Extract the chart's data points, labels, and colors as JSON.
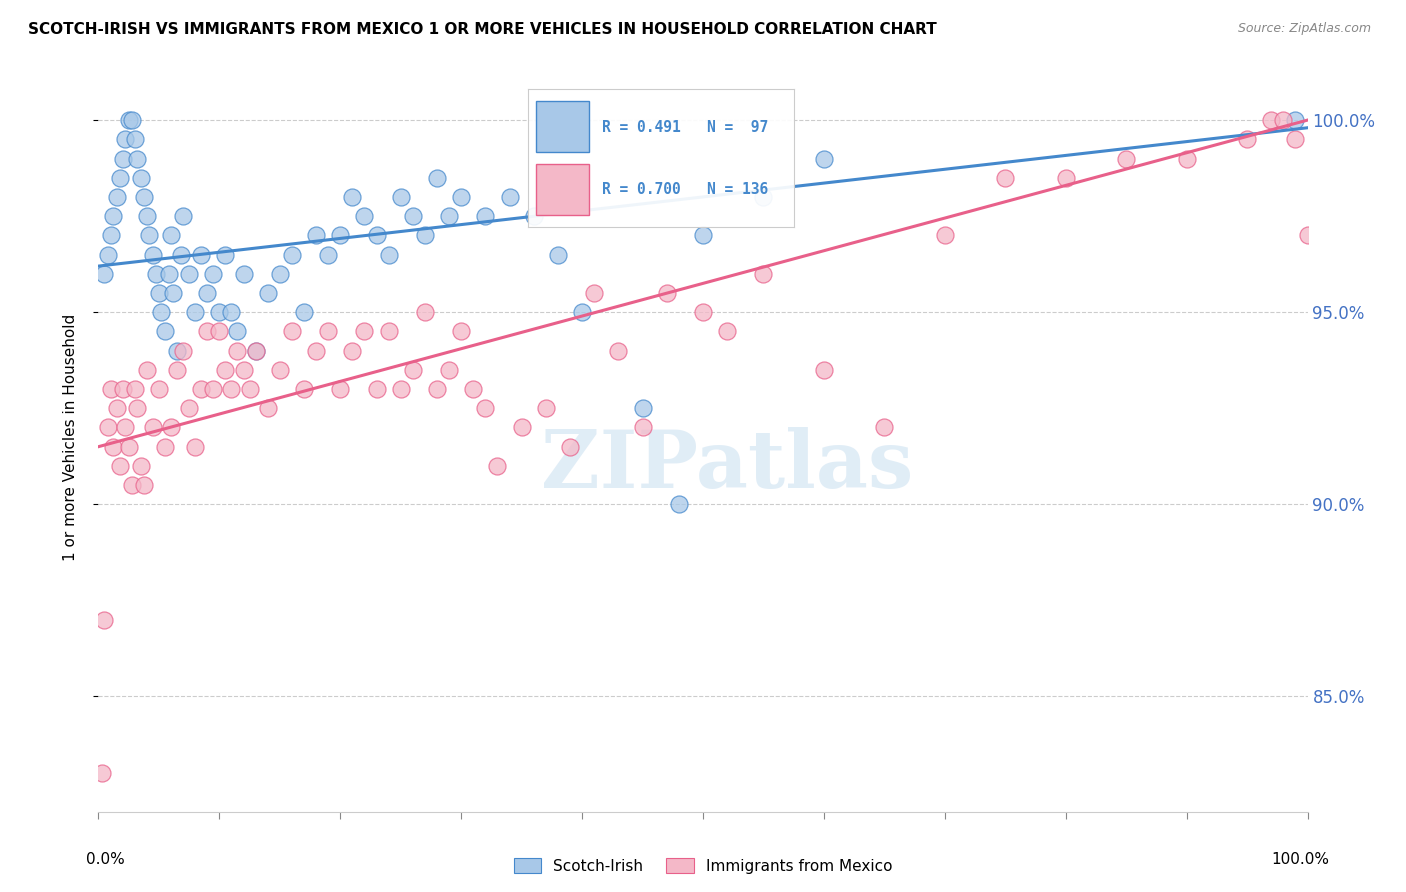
{
  "title": "SCOTCH-IRISH VS IMMIGRANTS FROM MEXICO 1 OR MORE VEHICLES IN HOUSEHOLD CORRELATION CHART",
  "source": "Source: ZipAtlas.com",
  "ylabel": "1 or more Vehicles in Household",
  "watermark": "ZIPatlas",
  "legend_blue_label": "Scotch-Irish",
  "legend_pink_label": "Immigrants from Mexico",
  "R_blue": 0.491,
  "N_blue": 97,
  "R_pink": 0.7,
  "N_pink": 136,
  "blue_color": "#a8c8e8",
  "pink_color": "#f4b8c8",
  "blue_line_color": "#4488cc",
  "pink_line_color": "#e8608a",
  "background_color": "#ffffff",
  "blue_scatter_x": [
    0.5,
    0.8,
    1.0,
    1.2,
    1.5,
    1.8,
    2.0,
    2.2,
    2.5,
    2.8,
    3.0,
    3.2,
    3.5,
    3.8,
    4.0,
    4.2,
    4.5,
    4.8,
    5.0,
    5.2,
    5.5,
    5.8,
    6.0,
    6.2,
    6.5,
    6.8,
    7.0,
    7.5,
    8.0,
    8.5,
    9.0,
    9.5,
    10.0,
    10.5,
    11.0,
    11.5,
    12.0,
    13.0,
    14.0,
    15.0,
    16.0,
    17.0,
    18.0,
    19.0,
    20.0,
    21.0,
    22.0,
    23.0,
    24.0,
    25.0,
    26.0,
    27.0,
    28.0,
    29.0,
    30.0,
    32.0,
    34.0,
    36.0,
    38.0,
    40.0,
    45.0,
    48.0,
    50.0,
    55.0,
    60.0,
    99.0
  ],
  "blue_scatter_y": [
    96.0,
    96.5,
    97.0,
    97.5,
    98.0,
    98.5,
    99.0,
    99.5,
    100.0,
    100.0,
    99.5,
    99.0,
    98.5,
    98.0,
    97.5,
    97.0,
    96.5,
    96.0,
    95.5,
    95.0,
    94.5,
    96.0,
    97.0,
    95.5,
    94.0,
    96.5,
    97.5,
    96.0,
    95.0,
    96.5,
    95.5,
    96.0,
    95.0,
    96.5,
    95.0,
    94.5,
    96.0,
    94.0,
    95.5,
    96.0,
    96.5,
    95.0,
    97.0,
    96.5,
    97.0,
    98.0,
    97.5,
    97.0,
    96.5,
    98.0,
    97.5,
    97.0,
    98.5,
    97.5,
    98.0,
    97.5,
    98.0,
    97.5,
    96.5,
    95.0,
    92.5,
    90.0,
    97.0,
    98.0,
    99.0,
    100.0
  ],
  "pink_scatter_x": [
    0.3,
    0.5,
    0.8,
    1.0,
    1.2,
    1.5,
    1.8,
    2.0,
    2.2,
    2.5,
    2.8,
    3.0,
    3.2,
    3.5,
    3.8,
    4.0,
    4.5,
    5.0,
    5.5,
    6.0,
    6.5,
    7.0,
    7.5,
    8.0,
    8.5,
    9.0,
    9.5,
    10.0,
    10.5,
    11.0,
    11.5,
    12.0,
    12.5,
    13.0,
    14.0,
    15.0,
    16.0,
    17.0,
    18.0,
    19.0,
    20.0,
    21.0,
    22.0,
    23.0,
    24.0,
    25.0,
    26.0,
    27.0,
    28.0,
    29.0,
    30.0,
    31.0,
    32.0,
    33.0,
    35.0,
    37.0,
    39.0,
    41.0,
    43.0,
    45.0,
    47.0,
    50.0,
    52.0,
    55.0,
    60.0,
    65.0,
    70.0,
    75.0,
    80.0,
    85.0,
    90.0,
    95.0,
    97.0,
    98.0,
    99.0,
    100.0
  ],
  "pink_scatter_y": [
    83.0,
    87.0,
    92.0,
    93.0,
    91.5,
    92.5,
    91.0,
    93.0,
    92.0,
    91.5,
    90.5,
    93.0,
    92.5,
    91.0,
    90.5,
    93.5,
    92.0,
    93.0,
    91.5,
    92.0,
    93.5,
    94.0,
    92.5,
    91.5,
    93.0,
    94.5,
    93.0,
    94.5,
    93.5,
    93.0,
    94.0,
    93.5,
    93.0,
    94.0,
    92.5,
    93.5,
    94.5,
    93.0,
    94.0,
    94.5,
    93.0,
    94.0,
    94.5,
    93.0,
    94.5,
    93.0,
    93.5,
    95.0,
    93.0,
    93.5,
    94.5,
    93.0,
    92.5,
    91.0,
    92.0,
    92.5,
    91.5,
    95.5,
    94.0,
    92.0,
    95.5,
    95.0,
    94.5,
    96.0,
    93.5,
    92.0,
    97.0,
    98.5,
    98.5,
    99.0,
    99.0,
    99.5,
    100.0,
    100.0,
    99.5,
    97.0
  ],
  "blue_line_x0": 0.0,
  "blue_line_x1": 100.0,
  "blue_line_y0": 96.2,
  "blue_line_y1": 99.8,
  "pink_line_x0": 0.0,
  "pink_line_x1": 100.0,
  "pink_line_y0": 91.5,
  "pink_line_y1": 100.0,
  "xmin": 0.0,
  "xmax": 100.0,
  "ymin": 82.0,
  "ymax": 101.5,
  "ytick_vals": [
    85.0,
    90.0,
    95.0,
    100.0
  ],
  "ytick_labels": [
    "85.0%",
    "90.0%",
    "95.0%",
    "100.0%"
  ],
  "figsize": [
    14.06,
    8.92
  ],
  "dpi": 100
}
